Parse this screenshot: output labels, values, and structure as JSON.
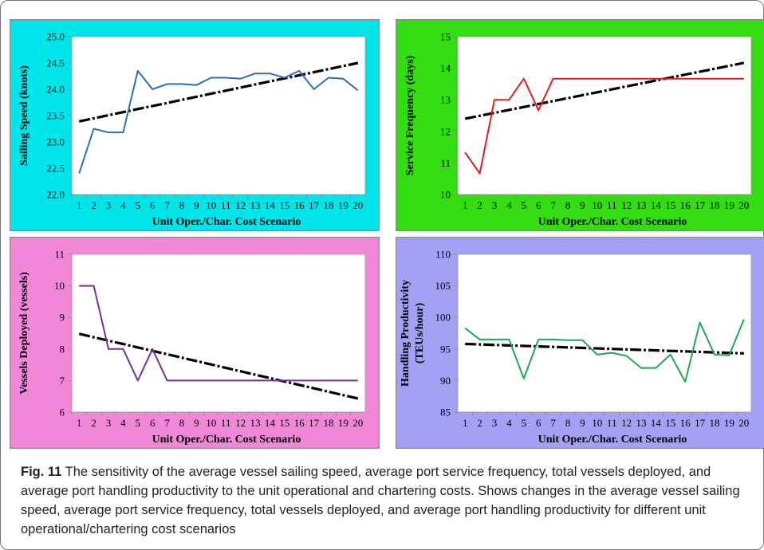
{
  "caption": {
    "label": "Fig. 11",
    "text": "The sensitivity of the average vessel sailing speed, average port service frequency, total vessels deployed, and average port handling productivity to the unit operational and chartering costs. Shows changes in the average vessel sailing speed, average port service frequency, total vessels deployed, and average port handling productivity for different unit operational/chartering cost scenarios"
  },
  "chart_data": [
    {
      "type": "line",
      "background": "#00e5ea",
      "line_color": "#2b6fb6",
      "xlabel": "Unit Oper./Char. Cost Scenario",
      "ylabel": "Sailing Speed (knots)",
      "x": [
        1,
        2,
        3,
        4,
        5,
        6,
        7,
        8,
        9,
        10,
        11,
        12,
        13,
        14,
        15,
        16,
        17,
        18,
        19,
        20
      ],
      "ylim": [
        22.0,
        25.0
      ],
      "yticks": [
        "22.0",
        "22.5",
        "23.0",
        "23.5",
        "24.0",
        "24.5",
        "25.0"
      ],
      "values": [
        22.4,
        23.25,
        23.18,
        23.18,
        24.35,
        24.0,
        24.1,
        24.1,
        24.08,
        24.22,
        24.22,
        24.2,
        24.3,
        24.3,
        24.22,
        24.35,
        24.0,
        24.22,
        24.2,
        23.98
      ],
      "trend": [
        23.39,
        24.5
      ]
    },
    {
      "type": "line",
      "background": "#33dd11",
      "line_color": "#e21b1b",
      "xlabel": "Unit Oper./Char. Cost Scenario",
      "ylabel": "Service Frequency (days)",
      "x": [
        1,
        2,
        3,
        4,
        5,
        6,
        7,
        8,
        9,
        10,
        11,
        12,
        13,
        14,
        15,
        16,
        17,
        18,
        19,
        20
      ],
      "ylim": [
        10,
        15
      ],
      "yticks": [
        "10",
        "11",
        "12",
        "13",
        "14",
        "15"
      ],
      "values": [
        11.33,
        10.67,
        13.0,
        13.0,
        13.67,
        12.67,
        13.67,
        13.67,
        13.67,
        13.67,
        13.67,
        13.67,
        13.67,
        13.67,
        13.67,
        13.67,
        13.67,
        13.67,
        13.67,
        13.67
      ],
      "trend": [
        12.4,
        14.17
      ]
    },
    {
      "type": "line",
      "background": "#f087d8",
      "line_color": "#7030a0",
      "xlabel": "Unit Oper./Char. Cost Scenario",
      "ylabel": "Vessels Deployed (vessels)",
      "x": [
        1,
        2,
        3,
        4,
        5,
        6,
        7,
        8,
        9,
        10,
        11,
        12,
        13,
        14,
        15,
        16,
        17,
        18,
        19,
        20
      ],
      "ylim": [
        6,
        11
      ],
      "yticks": [
        "6",
        "7",
        "8",
        "9",
        "10",
        "11"
      ],
      "values": [
        10,
        10,
        8,
        8,
        7,
        8,
        7,
        7,
        7,
        7,
        7,
        7,
        7,
        7,
        7,
        7,
        7,
        7,
        7,
        7
      ],
      "trend": [
        8.48,
        6.43
      ]
    },
    {
      "type": "line",
      "background": "#a4a0f4",
      "line_color": "#1fa84f",
      "xlabel": "Unit Oper./Char. Cost Scenario",
      "ylabel_line1": "Handling Productivity",
      "ylabel_line2": "(TEUs/hour)",
      "x": [
        1,
        2,
        3,
        4,
        5,
        6,
        7,
        8,
        9,
        10,
        11,
        12,
        13,
        14,
        15,
        16,
        17,
        18,
        19,
        20
      ],
      "ylim": [
        85,
        110
      ],
      "yticks": [
        "85",
        "90",
        "95",
        "100",
        "105",
        "110"
      ],
      "values": [
        98.3,
        96.5,
        96.5,
        96.5,
        90.3,
        96.5,
        96.5,
        96.4,
        96.4,
        94.1,
        94.4,
        93.9,
        92.0,
        92.0,
        94.1,
        89.8,
        99.2,
        94.1,
        94.0,
        99.7
      ],
      "trend": [
        95.8,
        94.3
      ]
    }
  ]
}
